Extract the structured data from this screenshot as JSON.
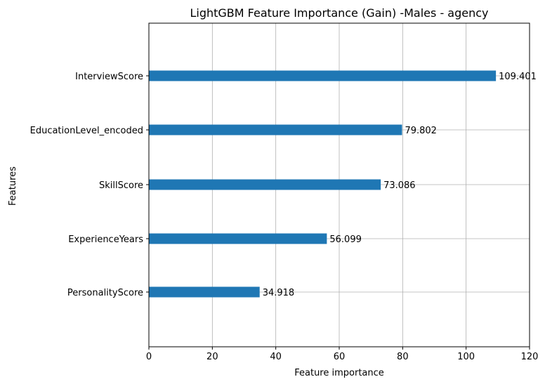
{
  "chart_data": {
    "type": "bar",
    "orientation": "horizontal",
    "title": "LightGBM Feature Importance (Gain) -Males - agency",
    "xlabel": "Feature importance",
    "ylabel": "Features",
    "categories": [
      "InterviewScore",
      "EducationLevel_encoded",
      "SkillScore",
      "ExperienceYears",
      "PersonalityScore"
    ],
    "values": [
      109.401,
      79.802,
      73.086,
      56.099,
      34.918
    ],
    "value_labels": [
      "109.401",
      "79.802",
      "73.086",
      "56.099",
      "34.918"
    ],
    "xlim": [
      0,
      120
    ],
    "xticks": [
      0,
      20,
      40,
      60,
      80,
      100,
      120
    ],
    "grid": true,
    "bar_color": "#1f77b4",
    "grid_color": "#b0b0b0"
  }
}
